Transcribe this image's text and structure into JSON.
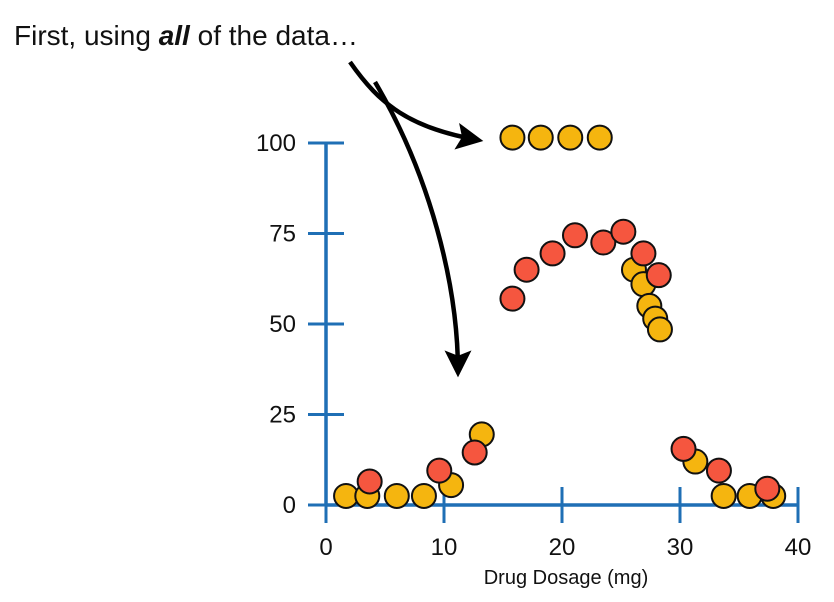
{
  "caption": {
    "prefix": "First, using ",
    "emphasis": "all",
    "suffix": " of the data…"
  },
  "chart_data": {
    "type": "scatter",
    "title": "",
    "xlabel": "Drug Dosage (mg)",
    "ylabel": "",
    "xlim": [
      0,
      40
    ],
    "ylim": [
      0,
      100
    ],
    "xticks": [
      0,
      10,
      20,
      30,
      40
    ],
    "yticks": [
      0,
      25,
      50,
      75,
      100
    ],
    "grid": false,
    "legend": "none",
    "series": [
      {
        "name": "orange",
        "color": "#F5B50F",
        "points": [
          [
            1.7,
            2.5
          ],
          [
            3.5,
            2.5
          ],
          [
            6.0,
            2.5
          ],
          [
            8.3,
            2.5
          ],
          [
            10.6,
            5.5
          ],
          [
            13.2,
            19.5
          ],
          [
            15.8,
            101.5
          ],
          [
            18.2,
            101.5
          ],
          [
            20.7,
            101.5
          ],
          [
            23.2,
            101.5
          ],
          [
            26.1,
            65.0
          ],
          [
            26.9,
            61.0
          ],
          [
            27.4,
            55.0
          ],
          [
            27.9,
            51.5
          ],
          [
            28.3,
            48.5
          ],
          [
            31.3,
            12.0
          ],
          [
            33.7,
            2.5
          ],
          [
            35.9,
            2.5
          ],
          [
            37.9,
            2.5
          ]
        ]
      },
      {
        "name": "red",
        "color": "#F5563F",
        "points": [
          [
            3.7,
            6.5
          ],
          [
            9.6,
            9.5
          ],
          [
            12.6,
            14.5
          ],
          [
            15.8,
            57.0
          ],
          [
            17.0,
            65.0
          ],
          [
            19.2,
            69.5
          ],
          [
            21.1,
            74.5
          ],
          [
            23.5,
            72.5
          ],
          [
            25.2,
            75.5
          ],
          [
            26.9,
            69.5
          ],
          [
            28.2,
            63.5
          ],
          [
            30.3,
            15.5
          ],
          [
            33.3,
            9.5
          ],
          [
            37.4,
            4.5
          ]
        ]
      }
    ]
  }
}
